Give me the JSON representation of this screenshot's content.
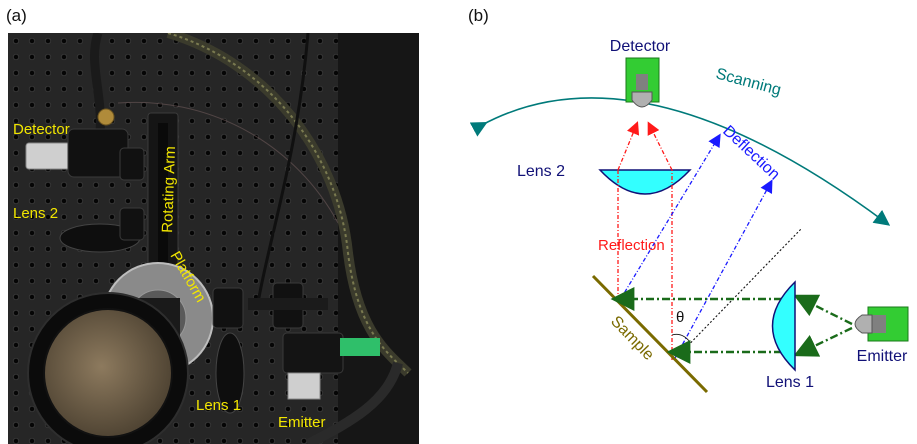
{
  "panels": {
    "a": "(a)",
    "b": "(b)"
  },
  "photo_labels": {
    "detector": "Detector",
    "lens2": "Lens 2",
    "rotating_arm": "Rotating Arm",
    "platform": "Platform",
    "lens1": "Lens 1",
    "emitter": "Emitter"
  },
  "diagram_labels": {
    "detector": "Detector",
    "scanning": "Scanning",
    "lens2": "Lens 2",
    "deflection": "Deflection",
    "reflection": "Reflection",
    "sample": "Sample",
    "theta": "θ",
    "emitter": "Emitter",
    "lens1": "Lens 1"
  },
  "colors": {
    "detector_green": "#33cc33",
    "lens_cyan": "#33ffff",
    "scanning_teal": "#007a7a",
    "deflection_blue": "#1a1aff",
    "reflection_red": "#ff1a1a",
    "beam_green": "#1a6b1a",
    "sample_olive": "#7a6a00",
    "label_navy": "#111177",
    "photo_label_yellow": "#f2e600"
  }
}
